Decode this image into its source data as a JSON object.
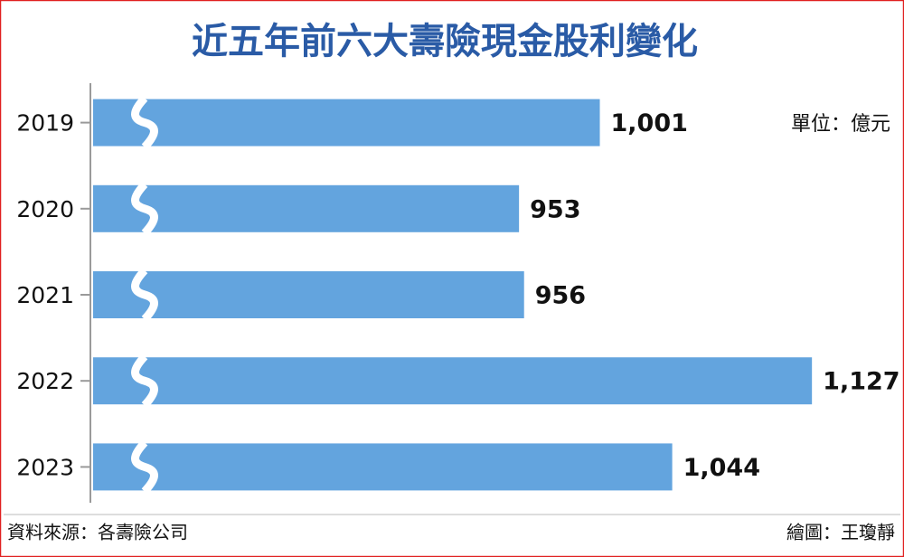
{
  "chart_data": {
    "type": "bar",
    "orientation": "horizontal",
    "title": "近五年前六大壽險現金股利變化",
    "unit": "單位：億元",
    "source": "資料來源：各壽險公司",
    "credit": "繪圖：王瓊靜",
    "categories": [
      "2019",
      "2020",
      "2021",
      "2022",
      "2023"
    ],
    "values": [
      1001,
      953,
      956,
      1127,
      1044
    ],
    "value_labels": [
      "1,001",
      "953",
      "956",
      "1,127",
      "1,044"
    ],
    "color": "#63a4de",
    "xlim": [
      700,
      1150
    ],
    "axis_break": true
  }
}
